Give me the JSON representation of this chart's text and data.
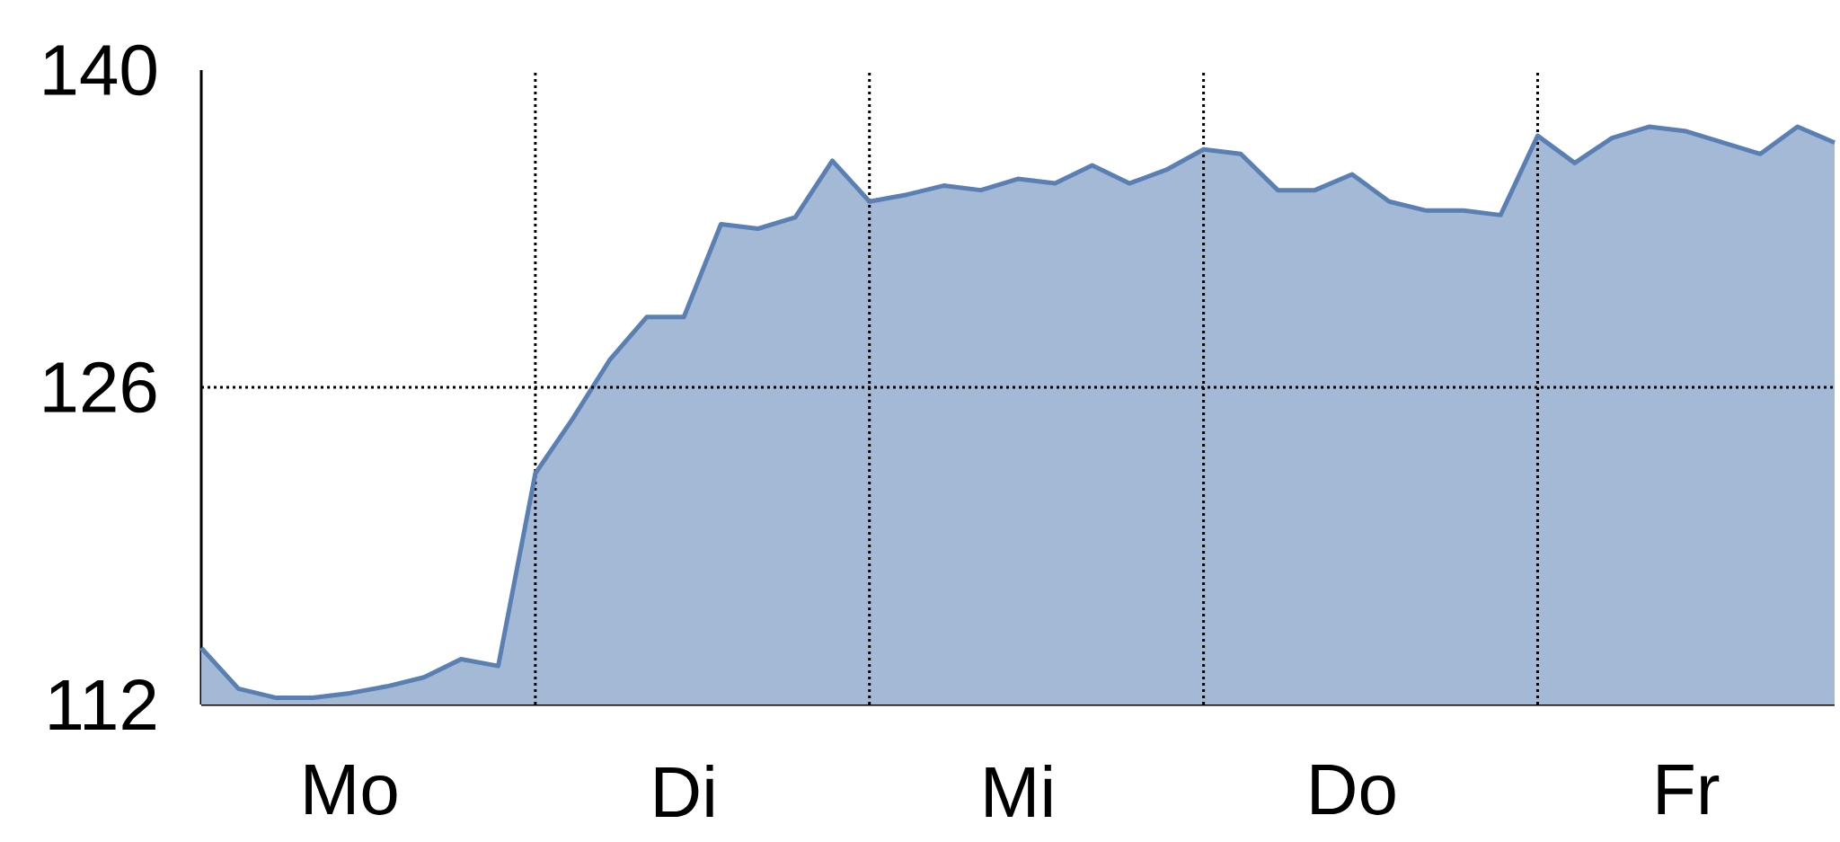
{
  "chart_data": {
    "type": "area",
    "categories": [
      null,
      null,
      null,
      null,
      "Mo",
      null,
      null,
      null,
      null,
      null,
      null,
      null,
      null,
      "Di",
      null,
      null,
      null,
      null,
      null,
      null,
      null,
      null,
      "Mi",
      null,
      null,
      null,
      null,
      null,
      null,
      null,
      null,
      "Do",
      null,
      null,
      null,
      null,
      null,
      null,
      null,
      null,
      "Fr",
      null,
      null,
      null,
      null
    ],
    "values": [
      114.5,
      112.7,
      112.3,
      112.3,
      112.5,
      112.8,
      113.2,
      114.0,
      113.7,
      122.2,
      124.6,
      127.2,
      129.1,
      129.1,
      133.2,
      133.0,
      133.5,
      136.0,
      134.2,
      134.5,
      134.9,
      134.7,
      135.2,
      135.0,
      135.8,
      135.0,
      135.6,
      136.5,
      136.3,
      134.7,
      134.7,
      135.4,
      134.2,
      133.8,
      133.8,
      133.6,
      137.1,
      135.9,
      137.0,
      137.5,
      137.3,
      136.8,
      136.3,
      137.5,
      136.8
    ],
    "color": "#5a7fb3",
    "ylim": [
      112,
      140
    ],
    "yticks": [
      112,
      126,
      140
    ],
    "ref_lines": [
      {
        "axis": "y",
        "value": 126,
        "line_style": "dotted"
      }
    ]
  }
}
